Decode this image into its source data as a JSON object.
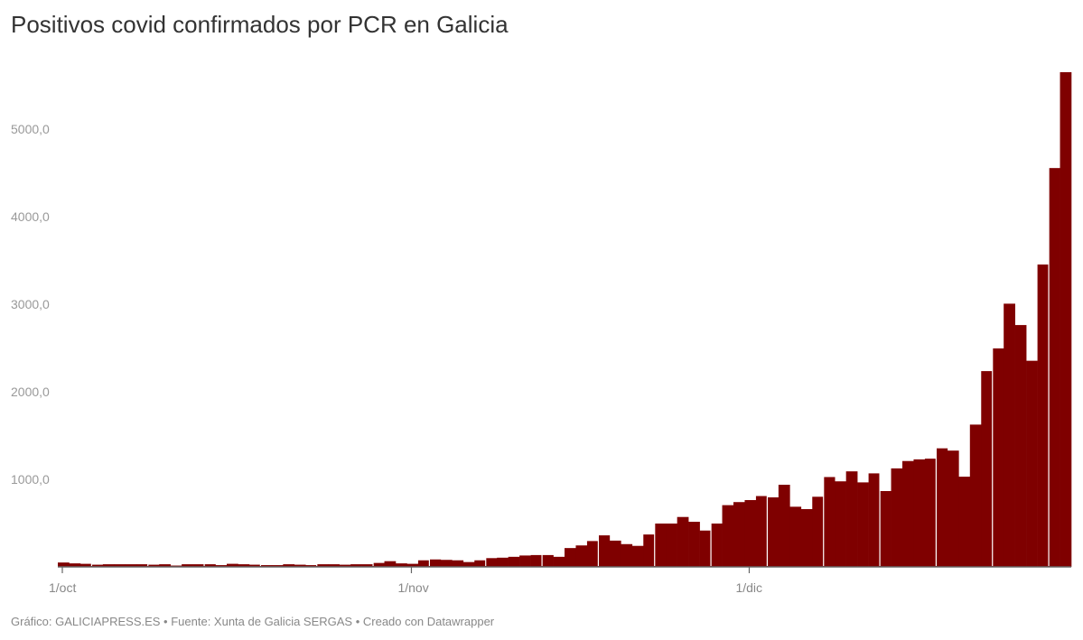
{
  "title": "Positivos covid confirmados por PCR en Galicia",
  "footer": "Gráfico: GALICIAPRESS.ES • Fuente: Xunta de Galicia SERGAS • Creado con Datawrapper",
  "chart_data": {
    "type": "bar",
    "title": "Positivos covid confirmados por PCR en Galicia",
    "xlabel": "",
    "ylabel": "",
    "ylim": [
      0,
      5700
    ],
    "bar_color": "#7f0000",
    "grid": false,
    "x_ticks": [
      {
        "label": "1/oct",
        "index": 0
      },
      {
        "label": "1/nov",
        "index": 31
      },
      {
        "label": "1/dic",
        "index": 61
      }
    ],
    "y_ticks": [
      {
        "value": 1000,
        "label": "1000,0"
      },
      {
        "value": 2000,
        "label": "2000,0"
      },
      {
        "value": 3000,
        "label": "3000,0"
      },
      {
        "value": 4000,
        "label": "4000,0"
      },
      {
        "value": 5000,
        "label": "5000,0"
      }
    ],
    "date_range": [
      "1/oct",
      "29/dic"
    ],
    "values": [
      50,
      40,
      35,
      25,
      30,
      30,
      30,
      30,
      25,
      30,
      15,
      30,
      30,
      30,
      20,
      35,
      30,
      25,
      20,
      20,
      30,
      25,
      20,
      30,
      30,
      25,
      30,
      30,
      45,
      65,
      40,
      35,
      75,
      85,
      80,
      75,
      55,
      75,
      100,
      105,
      115,
      130,
      135,
      135,
      115,
      215,
      245,
      295,
      360,
      300,
      260,
      240,
      370,
      495,
      495,
      570,
      515,
      415,
      495,
      705,
      740,
      763,
      809,
      794,
      938,
      687,
      660,
      801,
      1026,
      977,
      1091,
      965,
      1068,
      866,
      1125,
      1209,
      1228,
      1236,
      1354,
      1328,
      1030,
      1625,
      2236,
      2495,
      3006,
      2762,
      2354,
      3453,
      4555,
      5650
    ]
  }
}
